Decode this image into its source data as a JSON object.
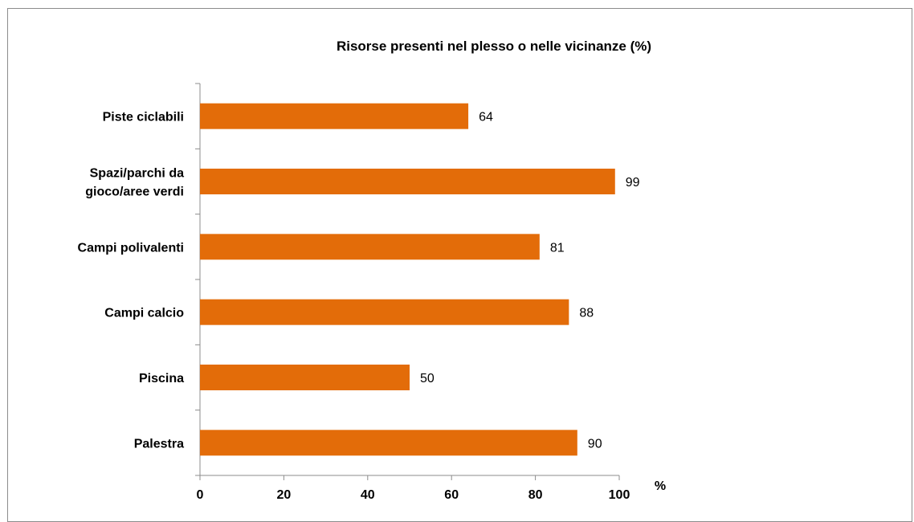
{
  "chart_data": {
    "type": "bar",
    "orientation": "horizontal",
    "title": "Risorse presenti nel plesso o nelle vicinanze (%)",
    "categories": [
      "Piste ciclabili",
      "Spazi/parchi da gioco/aree verdi",
      "Campi polivalenti",
      "Campi calcio",
      "Piscina",
      "Palestra"
    ],
    "category_lines": [
      [
        "Piste ciclabili"
      ],
      [
        "Spazi/parchi da",
        "gioco/aree verdi"
      ],
      [
        "Campi polivalenti"
      ],
      [
        "Campi calcio"
      ],
      [
        "Piscina"
      ],
      [
        "Palestra"
      ]
    ],
    "values": [
      64,
      99,
      81,
      88,
      50,
      90
    ],
    "xlim": [
      0,
      100
    ],
    "xticks": [
      0,
      20,
      40,
      60,
      80,
      100
    ],
    "xunit": "%",
    "data_labels": true,
    "grid": false,
    "bar_color": "#e36c09"
  }
}
